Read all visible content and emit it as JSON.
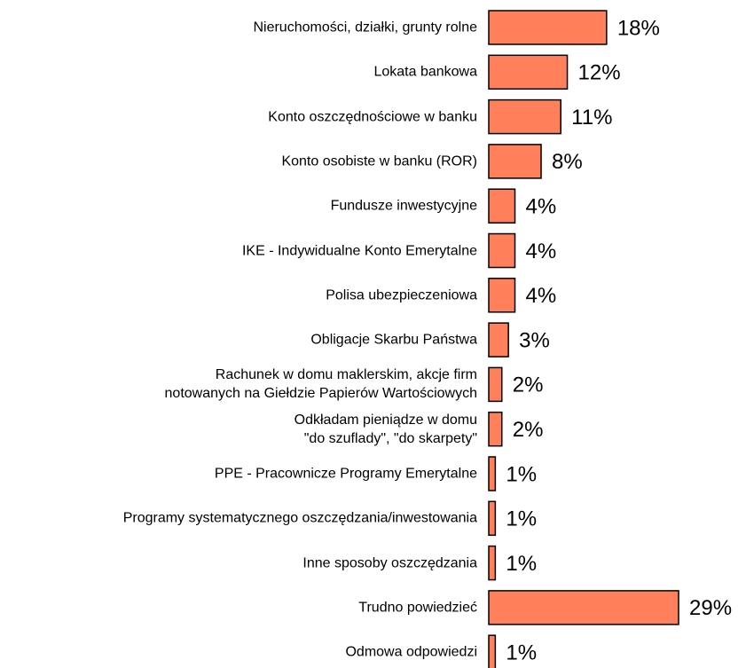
{
  "chart_data": {
    "type": "barh",
    "categories": [
      "Nieruchomości, działki, grunty rolne",
      "Lokata bankowa",
      "Konto oszczędnościowe w banku",
      "Konto osobiste w banku (ROR)",
      "Fundusze inwestycyjne",
      "IKE - Indywidualne Konto Emerytalne",
      "Polisa ubezpieczeniowa",
      "Obligacje Skarbu Państwa",
      "Rachunek w domu maklerskim, akcje firm\nnotowanych na Giełdzie Papierów Wartościowych",
      "Odkładam pieniądze w domu\n\"do szuflady\", \"do skarpety\"",
      "PPE - Pracownicze Programy Emerytalne",
      "Programy systematycznego oszczędzania/inwestowania",
      "Inne sposoby oszczędzania",
      "Trudno powiedzieć",
      "Odmowa odpowiedzi"
    ],
    "values": [
      18,
      12,
      11,
      8,
      4,
      4,
      4,
      3,
      2,
      2,
      1,
      1,
      1,
      29,
      1
    ],
    "value_labels": [
      "18%",
      "12%",
      "11%",
      "8%",
      "4%",
      "4%",
      "4%",
      "3%",
      "2%",
      "2%",
      "1%",
      "1%",
      "1%",
      "29%",
      "1%"
    ],
    "color": "#ff805a"
  }
}
